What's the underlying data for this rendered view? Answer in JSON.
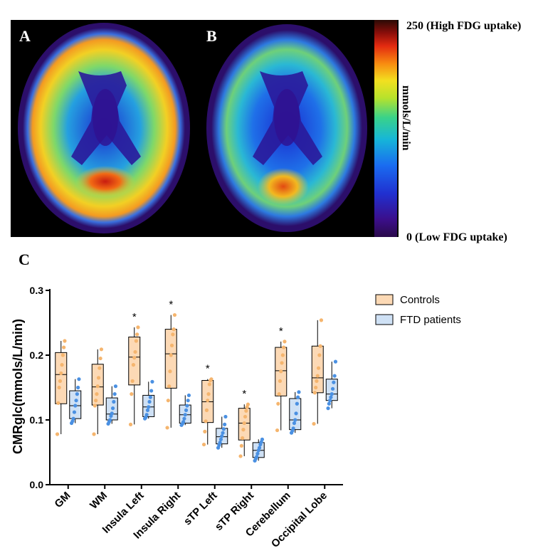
{
  "panels": {
    "a_label": "A",
    "b_label": "B",
    "c_label": "C"
  },
  "colorbar": {
    "max_label": "250 (High FDG uptake)",
    "min_label": "0 (Low FDG uptake)",
    "unit_label": "mmols/L/min",
    "range": [
      0,
      250
    ]
  },
  "chart_data": {
    "type": "box",
    "ylabel": "CMRglc(mmols/L/min)",
    "xlabel": "",
    "ylim": [
      0.0,
      0.3
    ],
    "yticks": [
      "0.0",
      "0.1",
      "0.2",
      "0.3"
    ],
    "categories": [
      "GM",
      "WM",
      "Insula Left",
      "Insula Right",
      "sTP Left",
      "sTP Right",
      "Cerebellum",
      "Occipital Lobe"
    ],
    "significant": [
      false,
      false,
      true,
      true,
      true,
      true,
      true,
      false
    ],
    "significance_marker": "*",
    "legend_position": "top-right",
    "series": [
      {
        "name": "Controls",
        "color": "#fcd9b5",
        "point_color": "#f5b56e",
        "boxes": [
          {
            "min": 0.078,
            "q1": 0.125,
            "median": 0.17,
            "q3": 0.204,
            "max": 0.222,
            "points": [
              0.078,
              0.126,
              0.15,
              0.16,
              0.172,
              0.185,
              0.2,
              0.212,
              0.222
            ]
          },
          {
            "min": 0.078,
            "q1": 0.123,
            "median": 0.151,
            "q3": 0.186,
            "max": 0.209,
            "points": [
              0.078,
              0.122,
              0.13,
              0.14,
              0.152,
              0.165,
              0.18,
              0.195,
              0.209
            ]
          },
          {
            "min": 0.093,
            "q1": 0.154,
            "median": 0.197,
            "q3": 0.228,
            "max": 0.243,
            "points": [
              0.093,
              0.14,
              0.16,
              0.185,
              0.196,
              0.205,
              0.222,
              0.232,
              0.243
            ]
          },
          {
            "min": 0.088,
            "q1": 0.149,
            "median": 0.202,
            "q3": 0.24,
            "max": 0.262,
            "points": [
              0.088,
              0.13,
              0.152,
              0.175,
              0.2,
              0.215,
              0.232,
              0.24,
              0.262
            ]
          },
          {
            "min": 0.062,
            "q1": 0.096,
            "median": 0.128,
            "q3": 0.161,
            "max": 0.163,
            "points": [
              0.062,
              0.082,
              0.098,
              0.115,
              0.13,
              0.14,
              0.155,
              0.161,
              0.163
            ]
          },
          {
            "min": 0.044,
            "q1": 0.069,
            "median": 0.095,
            "q3": 0.118,
            "max": 0.124,
            "points": [
              0.044,
              0.06,
              0.072,
              0.085,
              0.095,
              0.105,
              0.114,
              0.12,
              0.124
            ]
          },
          {
            "min": 0.084,
            "q1": 0.137,
            "median": 0.176,
            "q3": 0.212,
            "max": 0.221,
            "points": [
              0.084,
              0.125,
              0.14,
              0.16,
              0.175,
              0.188,
              0.2,
              0.212,
              0.221
            ]
          },
          {
            "min": 0.094,
            "q1": 0.142,
            "median": 0.165,
            "q3": 0.214,
            "max": 0.254,
            "points": [
              0.094,
              0.142,
              0.15,
              0.16,
              0.168,
              0.18,
              0.2,
              0.214,
              0.254
            ]
          }
        ]
      },
      {
        "name": "FTD patients",
        "color": "#cfe1f5",
        "point_color": "#4a90e2",
        "boxes": [
          {
            "min": 0.095,
            "q1": 0.102,
            "median": 0.122,
            "q3": 0.145,
            "max": 0.163,
            "points": [
              0.095,
              0.098,
              0.102,
              0.112,
              0.122,
              0.13,
              0.14,
              0.15,
              0.163
            ]
          },
          {
            "min": 0.094,
            "q1": 0.1,
            "median": 0.109,
            "q3": 0.134,
            "max": 0.152,
            "points": [
              0.094,
              0.097,
              0.1,
              0.106,
              0.11,
              0.118,
              0.128,
              0.14,
              0.152
            ]
          },
          {
            "min": 0.102,
            "q1": 0.105,
            "median": 0.12,
            "q3": 0.138,
            "max": 0.159,
            "points": [
              0.102,
              0.104,
              0.108,
              0.115,
              0.12,
              0.128,
              0.135,
              0.145,
              0.159
            ]
          },
          {
            "min": 0.092,
            "q1": 0.095,
            "median": 0.108,
            "q3": 0.123,
            "max": 0.138,
            "points": [
              0.092,
              0.094,
              0.097,
              0.102,
              0.108,
              0.115,
              0.122,
              0.13,
              0.138
            ]
          },
          {
            "min": 0.057,
            "q1": 0.063,
            "median": 0.074,
            "q3": 0.087,
            "max": 0.105,
            "points": [
              0.057,
              0.061,
              0.065,
              0.07,
              0.075,
              0.08,
              0.086,
              0.093,
              0.105
            ]
          },
          {
            "min": 0.037,
            "q1": 0.042,
            "median": 0.053,
            "q3": 0.065,
            "max": 0.07,
            "points": [
              0.037,
              0.04,
              0.043,
              0.048,
              0.053,
              0.057,
              0.062,
              0.066,
              0.07
            ]
          },
          {
            "min": 0.08,
            "q1": 0.085,
            "median": 0.1,
            "q3": 0.133,
            "max": 0.143,
            "points": [
              0.08,
              0.083,
              0.087,
              0.095,
              0.1,
              0.11,
              0.125,
              0.135,
              0.143
            ]
          },
          {
            "min": 0.118,
            "q1": 0.13,
            "median": 0.14,
            "q3": 0.163,
            "max": 0.19,
            "points": [
              0.118,
              0.125,
              0.13,
              0.135,
              0.14,
              0.148,
              0.158,
              0.168,
              0.19
            ]
          }
        ]
      }
    ]
  }
}
